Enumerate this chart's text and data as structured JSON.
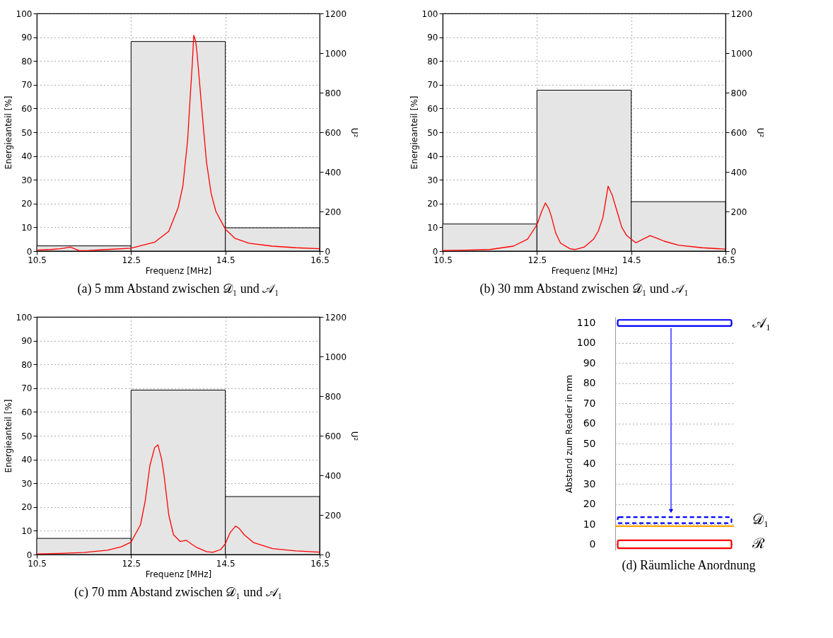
{
  "chart_data": [
    {
      "type": "histogram",
      "title": "(a) 5 mm Abstand zwischen 𝒟₁ und 𝒜₁",
      "xlabel": "Frequenz [MHz]",
      "ylabel": "Energieanteil [%]",
      "y2label": "U²",
      "bins": [
        10.5,
        12.5,
        14.5,
        16.5
      ],
      "xlim": [
        10.5,
        16.5
      ],
      "xticks": [
        10.5,
        12.5,
        14.5,
        16.5
      ],
      "ylim": [
        0,
        100
      ],
      "yticks": [
        0,
        10,
        20,
        30,
        40,
        50,
        60,
        70,
        80,
        90,
        100
      ],
      "y2lim": [
        0,
        1200
      ],
      "y2ticks": [
        0,
        200,
        400,
        600,
        800,
        1000,
        1200
      ],
      "grid": true,
      "series": [
        {
          "type": "histogram",
          "color": "#e5e5e5",
          "values": [
            2.2,
            88.2,
            9.8
          ]
        },
        {
          "type": "line",
          "axis": "y2",
          "color": "#ff0000",
          "x": [
            10.5,
            10.8,
            11.0,
            11.1,
            11.21,
            11.3,
            11.4,
            11.6,
            12.0,
            12.5,
            13.0,
            13.3,
            13.5,
            13.6,
            13.7,
            13.75,
            13.8,
            13.83,
            13.87,
            13.9,
            14.0,
            14.1,
            14.2,
            14.3,
            14.5,
            14.7,
            15.0,
            15.5,
            16.0,
            16.5
          ],
          "values": [
            5,
            8,
            12,
            16,
            20,
            12,
            2,
            3,
            8,
            15,
            45,
            100,
            220,
            330,
            560,
            760,
            950,
            1090,
            1060,
            1000,
            720,
            450,
            290,
            200,
            111,
            65,
            40,
            25,
            17,
            12
          ]
        }
      ]
    },
    {
      "type": "histogram",
      "title": "(b) 30 mm Abstand zwischen 𝒟₁ und 𝒜₁",
      "xlabel": "Frequenz [MHz]",
      "ylabel": "Energieanteil [%]",
      "y2label": "U²",
      "bins": [
        10.5,
        12.5,
        14.5,
        16.5
      ],
      "xlim": [
        10.5,
        16.5
      ],
      "xticks": [
        10.5,
        12.5,
        14.5,
        16.5
      ],
      "ylim": [
        0,
        100
      ],
      "yticks": [
        0,
        10,
        20,
        30,
        40,
        50,
        60,
        70,
        80,
        90,
        100
      ],
      "y2lim": [
        0,
        1200
      ],
      "y2ticks": [
        0,
        200,
        400,
        600,
        800,
        1000,
        1200
      ],
      "grid": true,
      "series": [
        {
          "type": "histogram",
          "color": "#e5e5e5",
          "values": [
            11.4,
            67.7,
            20.8
          ]
        },
        {
          "type": "line",
          "axis": "y2",
          "color": "#ff0000",
          "x": [
            10.5,
            11.0,
            11.5,
            12.0,
            12.3,
            12.5,
            12.6,
            12.68,
            12.75,
            12.8,
            12.9,
            13.0,
            13.2,
            13.3,
            13.5,
            13.7,
            13.8,
            13.9,
            14.01,
            14.1,
            14.2,
            14.3,
            14.4,
            14.5,
            14.6,
            14.75,
            14.9,
            15.05,
            15.2,
            15.5,
            16.0,
            16.5
          ],
          "values": [
            3,
            5,
            8,
            25,
            60,
            133,
            200,
            243,
            215,
            180,
            90,
            40,
            12,
            8,
            20,
            60,
            100,
            170,
            328,
            280,
            200,
            120,
            80,
            60,
            42,
            60,
            78,
            65,
            50,
            30,
            17,
            10
          ]
        }
      ]
    },
    {
      "type": "histogram",
      "title": "(c) 70 mm Abstand zwischen 𝒟₁ und 𝒜₁",
      "xlabel": "Frequenz [MHz]",
      "ylabel": "Energieanteil [%]",
      "y2label": "U²",
      "bins": [
        10.5,
        12.5,
        14.5,
        16.5
      ],
      "xlim": [
        10.5,
        16.5
      ],
      "xticks": [
        10.5,
        12.5,
        14.5,
        16.5
      ],
      "ylim": [
        0,
        100
      ],
      "yticks": [
        0,
        10,
        20,
        30,
        40,
        50,
        60,
        70,
        80,
        90,
        100
      ],
      "y2lim": [
        0,
        1200
      ],
      "y2ticks": [
        0,
        200,
        400,
        600,
        800,
        1000,
        1200
      ],
      "grid": true,
      "series": [
        {
          "type": "histogram",
          "color": "#e5e5e5",
          "values": [
            6.8,
            69.2,
            24.4
          ]
        },
        {
          "type": "line",
          "axis": "y2",
          "color": "#ff0000",
          "x": [
            10.5,
            11.0,
            11.5,
            12.0,
            12.3,
            12.5,
            12.7,
            12.8,
            12.9,
            13.0,
            13.07,
            13.15,
            13.2,
            13.3,
            13.4,
            13.54,
            13.67,
            13.8,
            13.9,
            14.1,
            14.23,
            14.4,
            14.5,
            14.6,
            14.72,
            14.8,
            14.9,
            15.1,
            15.5,
            16.0,
            16.5
          ],
          "values": [
            3,
            6,
            10,
            22,
            40,
            63,
            150,
            270,
            450,
            540,
            554,
            480,
            400,
            200,
            100,
            66,
            72,
            50,
            35,
            15,
            11,
            25,
            55,
            110,
            144,
            130,
            100,
            60,
            30,
            18,
            12
          ]
        }
      ]
    },
    {
      "type": "bar",
      "title": "(d) Räumliche Anordnung",
      "ylabel": "Abstand zum Reader in mm",
      "categories": [
        null
      ],
      "ylim": [
        -3,
        113
      ],
      "yticks": [
        0,
        10,
        20,
        30,
        40,
        50,
        60,
        70,
        80,
        90,
        100,
        110
      ],
      "grid": "y",
      "tick_labels": "y",
      "series": [
        {
          "name": "𝒜₁",
          "color": "#0000ff",
          "base": [
            108.5
          ],
          "values": [
            3
          ]
        },
        {
          "name": "𝒟₁",
          "color": "#0000ff",
          "base": [
            10.5
          ],
          "values": [
            3
          ],
          "line_style": "dashed"
        },
        {
          "name": "ℛ",
          "color": "#ff0000",
          "base": [
            -2
          ],
          "values": [
            4
          ]
        }
      ],
      "ref_lines": [
        {
          "axis": "y",
          "value": 9,
          "color": "#ffa500"
        }
      ]
    }
  ]
}
